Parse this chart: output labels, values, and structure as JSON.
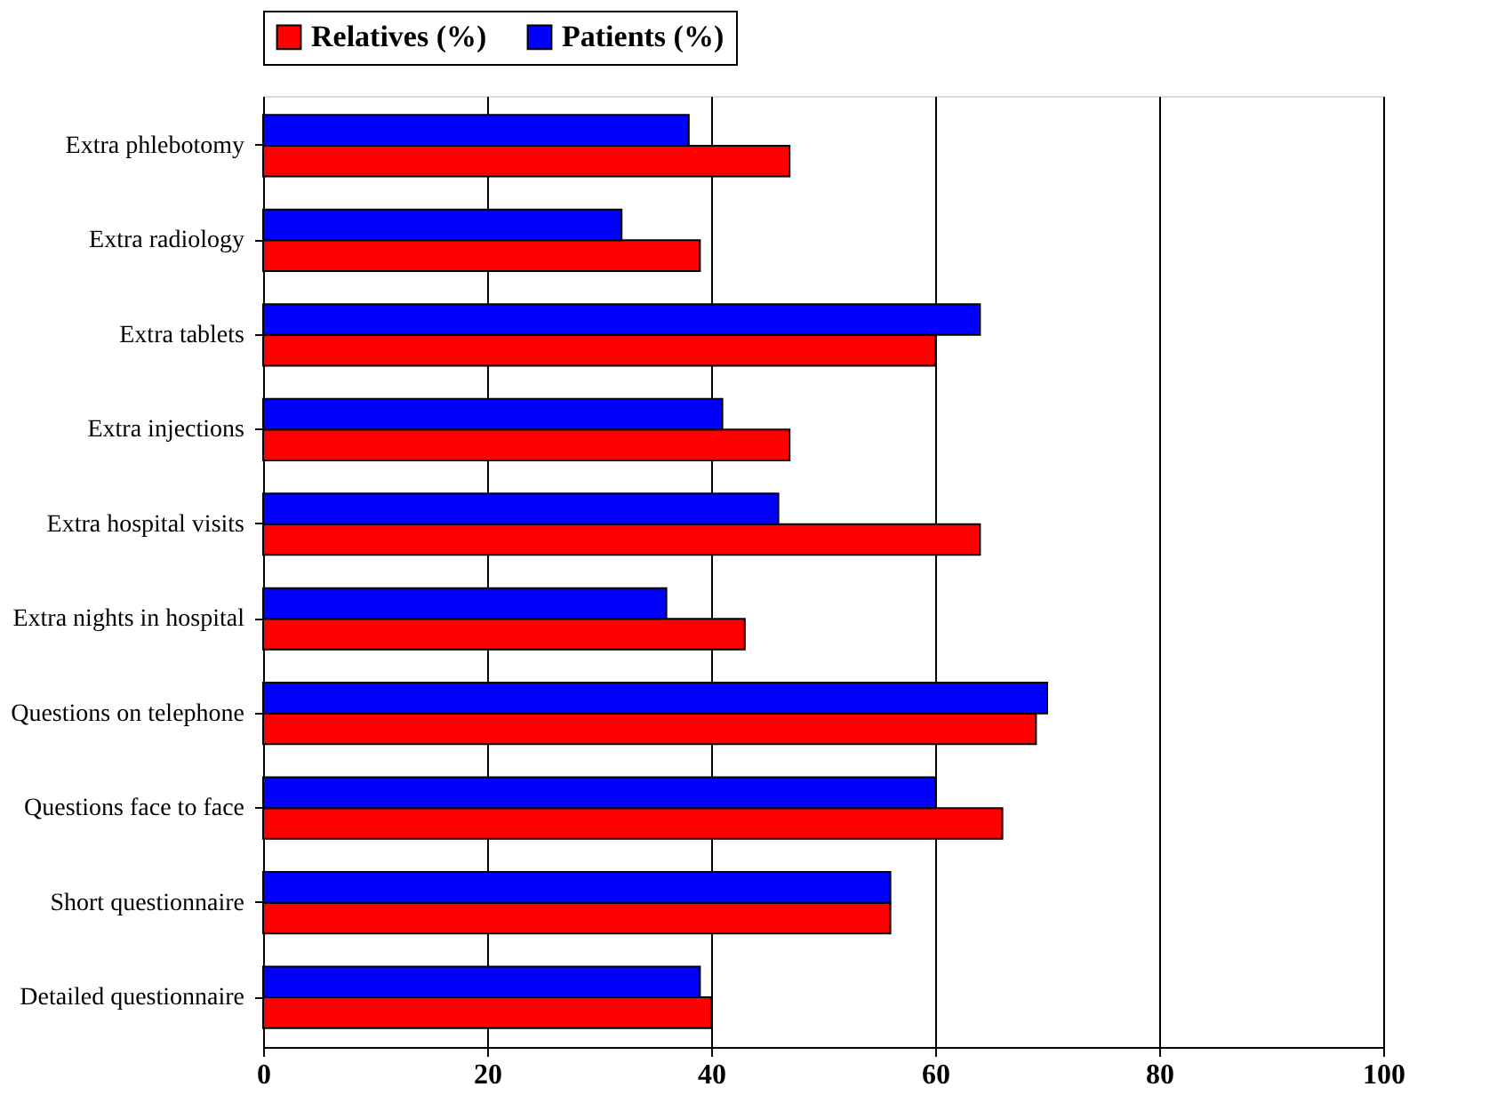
{
  "chart_data": {
    "type": "bar",
    "orientation": "horizontal",
    "categories": [
      "Extra phlebotomy",
      "Extra radiology",
      "Extra tablets",
      "Extra injections",
      "Extra hospital visits",
      "Extra nights in hospital",
      "Questions on telephone",
      "Questions face to face",
      "Short questionnaire",
      "Detailed questionnaire"
    ],
    "series": [
      {
        "name": "Relatives (%)",
        "color": "#ff0000",
        "values": [
          47,
          39,
          60,
          47,
          64,
          43,
          69,
          66,
          56,
          40
        ]
      },
      {
        "name": "Patients (%)",
        "color": "#0000ff",
        "values": [
          38,
          32,
          64,
          41,
          46,
          36,
          70,
          60,
          56,
          39
        ]
      }
    ],
    "xlim": [
      0,
      100
    ],
    "xticks": [
      0,
      20,
      40,
      60,
      80,
      100
    ],
    "grid": "x",
    "legend": "top"
  }
}
